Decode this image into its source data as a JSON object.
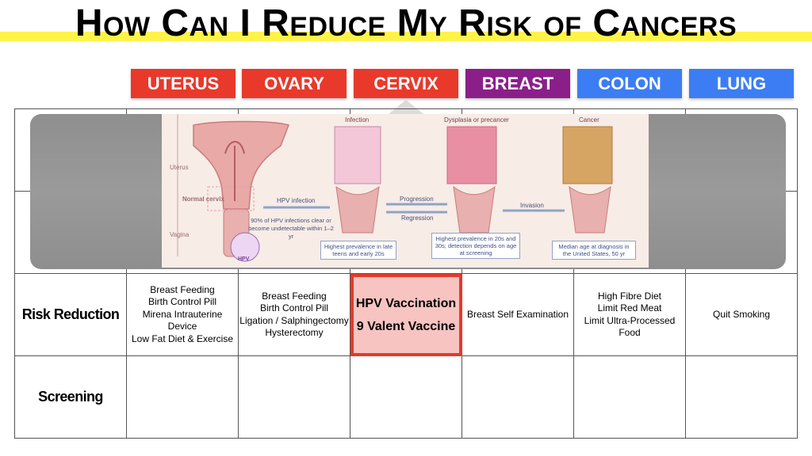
{
  "page": {
    "title": "How Can I Reduce My Risk of Cancers"
  },
  "tabs": [
    {
      "label": "UTERUS",
      "color": "#e8392b"
    },
    {
      "label": "OVARY",
      "color": "#e8392b"
    },
    {
      "label": "CERVIX",
      "color": "#e8392b"
    },
    {
      "label": "BREAST",
      "color": "#8a1f8a"
    },
    {
      "label": "COLON",
      "color": "#3c7df3"
    },
    {
      "label": "LUNG",
      "color": "#3c7df3"
    }
  ],
  "figure": {
    "uterus_label": "Uterus",
    "normal_cervix_label": "Normal cervix",
    "vagina_label": "Vagina",
    "hpv_label": "HPV",
    "infection_label": "Infection",
    "dysplasia_label": "Dysplasia or precancer",
    "cancer_label": "Cancer",
    "hpv_infection_label": "HPV infection",
    "clearance_note": "90% of HPV infections clear or become undetectable within 1–2 yr",
    "progression_label": "Progression",
    "regression_label": "Regression",
    "invasion_label": "Invasion",
    "box1": "Highest prevalence in late teens and early 20s",
    "box2": "Highest prevalence in 20s and 30s; detection depends on age at screening",
    "box3": "Median age at diagnosis in the United States, 50 yr"
  },
  "table": {
    "risk_reduction": {
      "label": "Risk Reduction",
      "uterus": [
        "Breast Feeding",
        "Birth Control Pill",
        "Mirena Intrauterine Device",
        "Low Fat Diet & Exercise"
      ],
      "ovary": [
        "Breast Feeding",
        "Birth Control Pill",
        "Ligation / Salphingectomy",
        "Hysterectomy"
      ],
      "cervix": [
        "HPV Vaccination",
        "9 Valent Vaccine"
      ],
      "breast": [
        "Breast Self Examination"
      ],
      "colon": [
        "High Fibre Diet",
        "Limit Red Meat",
        "Limit Ultra-Processed Food"
      ],
      "lung": [
        "Quit Smoking"
      ]
    },
    "screening": {
      "label": "Screening"
    }
  }
}
